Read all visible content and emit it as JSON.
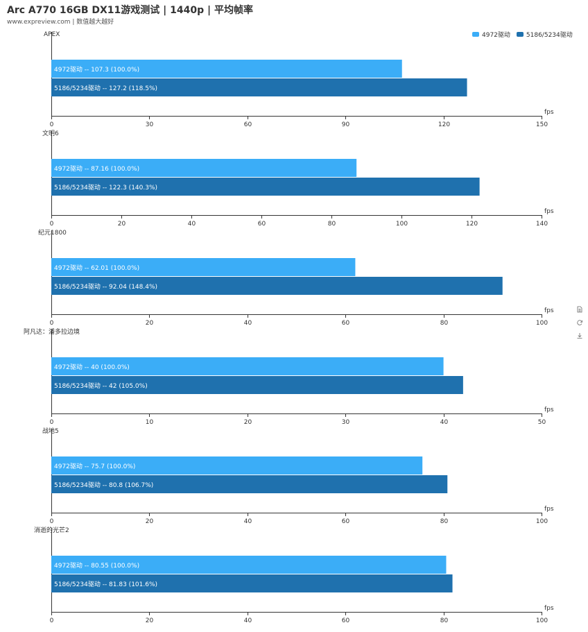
{
  "header": {
    "title": "Arc A770 16GB DX11游戏测试 | 1440p | 平均帧率",
    "subtitle": "www.expreview.com | 数值越大越好"
  },
  "legend": [
    {
      "name": "4972驱动",
      "color": "#3badf7"
    },
    {
      "name": "5186/5234驱动",
      "color": "#1f71ae"
    }
  ],
  "toolbox": {
    "icons": [
      "data-view-icon",
      "restore-icon",
      "save-image-icon"
    ]
  },
  "chart_data": [
    {
      "type": "bar",
      "title": "APEX",
      "xlabel": "fps",
      "xlim": [
        0,
        150
      ],
      "ticks": [
        "0",
        "30",
        "60",
        "90",
        "120",
        "150"
      ],
      "series": [
        {
          "name": "4972驱动",
          "value": 107.3,
          "label": "4972驱动  --  107.3 (100.0%)"
        },
        {
          "name": "5186/5234驱动",
          "value": 127.2,
          "label": "5186/5234驱动  --  127.2 (118.5%)"
        }
      ]
    },
    {
      "type": "bar",
      "title": "文明6",
      "xlabel": "fps",
      "xlim": [
        0,
        140
      ],
      "ticks": [
        "0",
        "20",
        "40",
        "60",
        "80",
        "100",
        "120",
        "140"
      ],
      "series": [
        {
          "name": "4972驱动",
          "value": 87.16,
          "label": "4972驱动  --  87.16 (100.0%)"
        },
        {
          "name": "5186/5234驱动",
          "value": 122.3,
          "label": "5186/5234驱动  --  122.3 (140.3%)"
        }
      ]
    },
    {
      "type": "bar",
      "title": "纪元1800",
      "xlabel": "fps",
      "xlim": [
        0,
        100
      ],
      "ticks": [
        "0",
        "20",
        "40",
        "60",
        "80",
        "100"
      ],
      "series": [
        {
          "name": "4972驱动",
          "value": 62.01,
          "label": "4972驱动  --  62.01 (100.0%)"
        },
        {
          "name": "5186/5234驱动",
          "value": 92.04,
          "label": "5186/5234驱动  --  92.04 (148.4%)"
        }
      ]
    },
    {
      "type": "bar",
      "title": "阿凡达：潘多拉边境",
      "xlabel": "fps",
      "xlim": [
        0,
        50
      ],
      "ticks": [
        "0",
        "10",
        "20",
        "30",
        "40",
        "50"
      ],
      "series": [
        {
          "name": "4972驱动",
          "value": 40,
          "label": "4972驱动  --  40 (100.0%)"
        },
        {
          "name": "5186/5234驱动",
          "value": 42,
          "label": "5186/5234驱动  --  42 (105.0%)"
        }
      ]
    },
    {
      "type": "bar",
      "title": "战地5",
      "xlabel": "fps",
      "xlim": [
        0,
        100
      ],
      "ticks": [
        "0",
        "20",
        "40",
        "60",
        "80",
        "100"
      ],
      "series": [
        {
          "name": "4972驱动",
          "value": 75.7,
          "label": "4972驱动  --  75.7 (100.0%)"
        },
        {
          "name": "5186/5234驱动",
          "value": 80.8,
          "label": "5186/5234驱动  --  80.8 (106.7%)"
        }
      ]
    },
    {
      "type": "bar",
      "title": "消逝的光芒2",
      "xlabel": "fps",
      "xlim": [
        0,
        100
      ],
      "ticks": [
        "0",
        "20",
        "40",
        "60",
        "80",
        "100"
      ],
      "series": [
        {
          "name": "4972驱动",
          "value": 80.55,
          "label": "4972驱动  --  80.55 (100.0%)"
        },
        {
          "name": "5186/5234驱动",
          "value": 81.83,
          "label": "5186/5234驱动  --  81.83 (101.6%)"
        }
      ]
    }
  ]
}
